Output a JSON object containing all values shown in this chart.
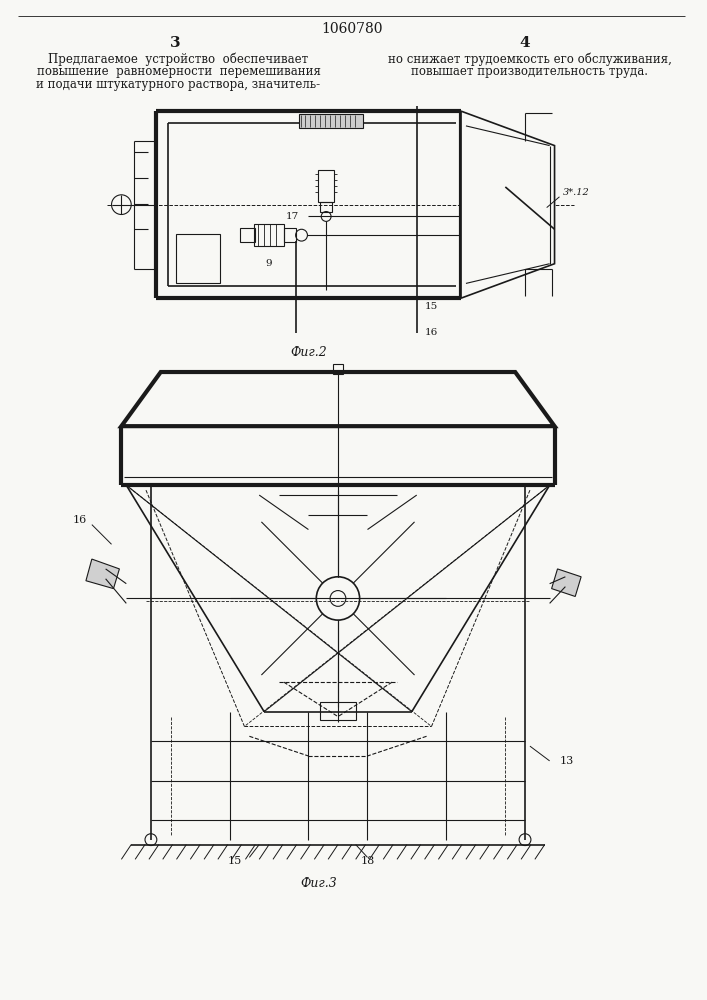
{
  "title": "1060780",
  "page_left": "3",
  "page_right": "4",
  "text_left": "Предлагаемое  устройство  обеспечивает\nповышение  равномерности  перемешивания\nи подачи штукатурного раствора, значитель-",
  "text_right": "но снижает трудоемкость его обслуживания,\nповышает производительность труда.",
  "fig2_label": "Фиг.2",
  "fig3_label": "Фиг.3",
  "bg_color": "#f8f8f5",
  "line_color": "#1a1a1a",
  "fig_width": 7.07,
  "fig_height": 10.0
}
